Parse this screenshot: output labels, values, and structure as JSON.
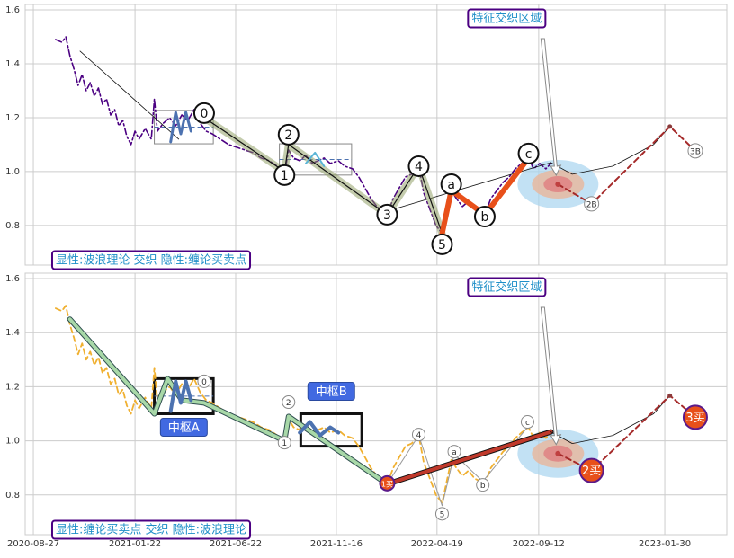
{
  "chart_data": [
    {
      "type": "line",
      "xlim": [
        -8,
        682
      ],
      "ylim": [
        0.653,
        1.62
      ],
      "yticks": [
        0.8,
        {
          "value": 1,
          "label": "1.0"
        },
        1.2,
        1.4,
        1.6
      ],
      "grid": true,
      "sharex": true,
      "series": [
        {
          "color": "#4b0082",
          "style": "dashdot",
          "width": 1.6,
          "x": [
            22,
            28,
            32,
            36,
            40,
            44,
            48,
            52,
            56,
            60,
            64,
            68,
            72,
            76,
            80,
            84,
            88,
            92,
            96,
            100,
            104,
            110,
            116,
            119,
            122,
            128,
            134,
            140,
            146,
            152,
            158,
            164,
            170,
            176,
            184,
            192,
            200,
            208,
            216,
            224,
            232,
            240,
            247,
            251,
            256,
            262,
            268,
            274,
            280,
            286,
            292,
            300,
            306,
            314,
            320,
            326,
            332,
            338,
            344,
            348,
            354,
            360,
            366,
            372,
            379,
            384,
            390,
            396,
            402,
            406,
            411,
            416,
            422,
            428,
            434,
            440,
            444,
            450,
            456,
            462,
            468,
            474,
            480,
            487,
            492,
            498,
            504,
            509
          ],
          "values": [
            1.49,
            1.48,
            1.5,
            1.43,
            1.38,
            1.32,
            1.36,
            1.3,
            1.33,
            1.28,
            1.31,
            1.25,
            1.27,
            1.21,
            1.23,
            1.17,
            1.19,
            1.13,
            1.1,
            1.15,
            1.12,
            1.16,
            1.12,
            1.27,
            1.15,
            1.18,
            1.2,
            1.17,
            1.21,
            1.19,
            1.23,
            1.18,
            1.15,
            1.14,
            1.12,
            1.1,
            1.09,
            1.08,
            1.07,
            1.05,
            1.04,
            1.02,
            0.99,
            1.08,
            1.05,
            1.04,
            1.06,
            1.03,
            1.04,
            1.05,
            1.03,
            1.04,
            1.02,
            1.01,
            0.98,
            0.94,
            0.9,
            0.87,
            0.85,
            0.84,
            0.9,
            0.94,
            0.98,
            0.99,
            1.02,
            0.92,
            0.86,
            0.8,
            0.77,
            0.84,
            0.93,
            0.9,
            0.87,
            0.89,
            0.86,
            0.85,
            0.84,
            0.9,
            0.93,
            0.96,
            0.98,
            1.01,
            1.03,
            1.05,
            1.01,
            1.03,
            1.01,
            1.03
          ]
        },
        {
          "color": "#111111",
          "style": "solid",
          "width": 0.8,
          "x": [
            46,
            143
          ],
          "values": [
            1.447,
            1.12
          ]
        },
        {
          "color": "#111111",
          "style": "solid",
          "width": 0.8,
          "x": [
            348,
            509
          ],
          "values": [
            0.853,
            1.033
          ]
        },
        {
          "color": "#8a9a5b",
          "style": "solid",
          "width": 8,
          "opacity": 0.5,
          "outline": "#111111",
          "x": [
            168,
            247,
            251,
            348,
            379,
            402
          ],
          "values": [
            1.2,
            1.0,
            1.1,
            0.84,
            1.02,
            0.77
          ]
        },
        {
          "color": "#e8501a",
          "style": "solid",
          "width": 6,
          "x": [
            402,
            411,
            444,
            487
          ],
          "values": [
            0.77,
            0.93,
            0.84,
            1.05
          ]
        },
        {
          "color": "#4c72b0",
          "style": "solid",
          "width": 3,
          "x": [
            135,
            140,
            145,
            150,
            155
          ],
          "values": [
            1.11,
            1.22,
            1.14,
            1.22,
            1.15
          ]
        },
        {
          "color": "#5ab4d6",
          "style": "solid",
          "width": 2,
          "x": [
            268,
            277,
            286
          ],
          "values": [
            1.03,
            1.07,
            1.02
          ]
        },
        {
          "color": "#111111",
          "style": "solid",
          "width": 0.8,
          "x": [
            509,
            530,
            570,
            610,
            626
          ],
          "values": [
            1.033,
            0.99,
            1.02,
            1.1,
            1.167
          ]
        },
        {
          "color": "#a52a2a",
          "style": "dashed",
          "width": 2,
          "markers": true,
          "x": [
            516,
            549,
            626,
            651
          ],
          "values": [
            0.953,
            0.88,
            1.167,
            1.077
          ]
        }
      ],
      "boxes": [
        {
          "x": [
            119,
            177
          ],
          "y": [
            1.103,
            1.227
          ]
        },
        {
          "x": [
            242,
            313
          ],
          "y": [
            0.987,
            1.103
          ]
        }
      ],
      "pivots": {
        "style": "big",
        "labels": [
          "0",
          "1",
          "2",
          "3",
          "4",
          "5",
          "a",
          "b",
          "c"
        ],
        "x": [
          168,
          247,
          251,
          348,
          379,
          402,
          411,
          444,
          487
        ],
        "values": [
          1.217,
          0.987,
          1.137,
          0.84,
          1.02,
          0.73,
          0.953,
          0.833,
          1.067
        ]
      },
      "signals": {
        "style": "plain",
        "labels": [
          "2B",
          "3B"
        ],
        "x": [
          549,
          651
        ],
        "values": [
          0.88,
          1.077
        ]
      },
      "focus": {
        "x": 516,
        "value": 0.953
      },
      "annotations": [
        "特征交织区域",
        "显性:波浪理论 交织 隐性:缠论买卖点"
      ]
    },
    {
      "type": "line",
      "xlim": [
        -8,
        682
      ],
      "ylim": [
        0.653,
        1.62
      ],
      "yticks": [
        0.8,
        {
          "value": 1,
          "label": "1.0"
        },
        1.2,
        1.4,
        1.6
      ],
      "xticks": [
        {
          "value": 0,
          "label": "2020-08-27"
        },
        {
          "value": 100,
          "label": "2021-01-22"
        },
        {
          "value": 199,
          "label": "2021-06-22"
        },
        {
          "value": 298,
          "label": "2021-11-16"
        },
        {
          "value": 397,
          "label": "2022-04-19"
        },
        {
          "value": 497,
          "label": "2022-09-12"
        },
        {
          "value": 621,
          "label": "2023-01-30"
        }
      ],
      "grid": true,
      "series": [
        {
          "color": "#f0b030",
          "style": "dashed",
          "width": 1.8,
          "x": [
            22,
            28,
            32,
            36,
            40,
            44,
            48,
            52,
            56,
            60,
            64,
            68,
            72,
            76,
            80,
            84,
            88,
            92,
            96,
            100,
            104,
            110,
            116,
            119,
            122,
            128,
            134,
            140,
            146,
            152,
            158,
            164,
            170,
            176,
            184,
            192,
            200,
            208,
            216,
            224,
            232,
            240,
            247,
            251,
            256,
            262,
            268,
            274,
            280,
            286,
            292,
            300,
            306,
            314,
            320,
            326,
            332,
            338,
            344,
            348,
            354,
            360,
            366,
            372,
            379,
            384,
            390,
            396,
            402,
            406,
            411,
            416,
            422,
            428,
            434,
            440,
            444,
            450,
            456,
            462,
            468,
            474,
            480,
            487,
            492,
            498,
            504,
            509
          ],
          "values": [
            1.49,
            1.48,
            1.5,
            1.43,
            1.38,
            1.32,
            1.36,
            1.3,
            1.33,
            1.28,
            1.31,
            1.25,
            1.27,
            1.21,
            1.23,
            1.17,
            1.19,
            1.13,
            1.1,
            1.15,
            1.12,
            1.16,
            1.12,
            1.27,
            1.15,
            1.18,
            1.2,
            1.17,
            1.21,
            1.19,
            1.23,
            1.18,
            1.15,
            1.14,
            1.12,
            1.1,
            1.09,
            1.08,
            1.07,
            1.05,
            1.04,
            1.02,
            0.99,
            1.08,
            1.05,
            1.04,
            1.06,
            1.03,
            1.04,
            1.05,
            1.03,
            1.04,
            1.02,
            1.01,
            0.98,
            0.94,
            0.9,
            0.87,
            0.85,
            0.84,
            0.9,
            0.94,
            0.98,
            0.99,
            1.02,
            0.92,
            0.86,
            0.8,
            0.77,
            0.84,
            0.93,
            0.9,
            0.87,
            0.89,
            0.86,
            0.85,
            0.84,
            0.9,
            0.93,
            0.96,
            0.98,
            1.01,
            1.03,
            1.05,
            1.01,
            1.03,
            1.01,
            1.03
          ]
        },
        {
          "color": "#a8d8a8",
          "style": "solid",
          "width": 4,
          "outline": "#2f4f4f",
          "x": [
            36,
            119,
            132,
            146,
            168,
            247,
            251,
            348
          ],
          "values": [
            1.45,
            1.1,
            1.23,
            1.15,
            1.14,
            1.0,
            1.09,
            0.84
          ]
        },
        {
          "color": "#999999",
          "style": "solid",
          "width": 1,
          "x": [
            348,
            379,
            402,
            414,
            442,
            486
          ],
          "values": [
            0.84,
            1.02,
            0.76,
            0.95,
            0.85,
            1.05
          ]
        },
        {
          "color": "#c0392b",
          "style": "solid",
          "width": 4,
          "outline": "#111111",
          "x": [
            348,
            509
          ],
          "values": [
            0.84,
            1.033
          ]
        },
        {
          "color": "#4c72b0",
          "style": "solid",
          "width": 4,
          "x": [
            135,
            140,
            145,
            150,
            155
          ],
          "values": [
            1.11,
            1.22,
            1.14,
            1.22,
            1.15
          ]
        },
        {
          "color": "#4c72b0",
          "style": "solid",
          "width": 4,
          "x": [
            262,
            272,
            282,
            292,
            300
          ],
          "values": [
            1.03,
            1.07,
            1.02,
            1.05,
            1.03
          ]
        },
        {
          "color": "#111111",
          "style": "solid",
          "width": 0.8,
          "x": [
            509,
            530,
            570,
            610,
            626
          ],
          "values": [
            1.033,
            0.99,
            1.02,
            1.1,
            1.167
          ]
        },
        {
          "color": "#a52a2a",
          "style": "dashed",
          "width": 2,
          "markers": true,
          "x": [
            516,
            549,
            626,
            651
          ],
          "values": [
            0.953,
            0.89,
            1.167,
            1.087
          ]
        }
      ],
      "boxes": [
        {
          "x": [
            119,
            177
          ],
          "y": [
            1.1,
            1.23
          ],
          "label": "中枢A"
        },
        {
          "x": [
            263,
            323
          ],
          "y": [
            0.98,
            1.1
          ],
          "label": "中枢B"
        }
      ],
      "pivots": {
        "style": "small",
        "labels": [
          "0",
          "1",
          "2",
          "4",
          "5",
          "a",
          "b",
          "c"
        ],
        "x": [
          168,
          247,
          251,
          379,
          402,
          414,
          442,
          486
        ],
        "values": [
          1.22,
          0.993,
          1.143,
          1.023,
          0.73,
          0.96,
          0.837,
          1.07
        ]
      },
      "signals": {
        "style": "buy",
        "labels": [
          "1买",
          "2买",
          "3买"
        ],
        "x": [
          348,
          549,
          651
        ],
        "values": [
          0.843,
          0.89,
          1.087
        ]
      },
      "focus": {
        "x": 516,
        "value": 0.953
      },
      "annotations": [
        "特征交织区域",
        "显性:缠论买卖点 交织 隐性:波浪理论"
      ]
    }
  ]
}
